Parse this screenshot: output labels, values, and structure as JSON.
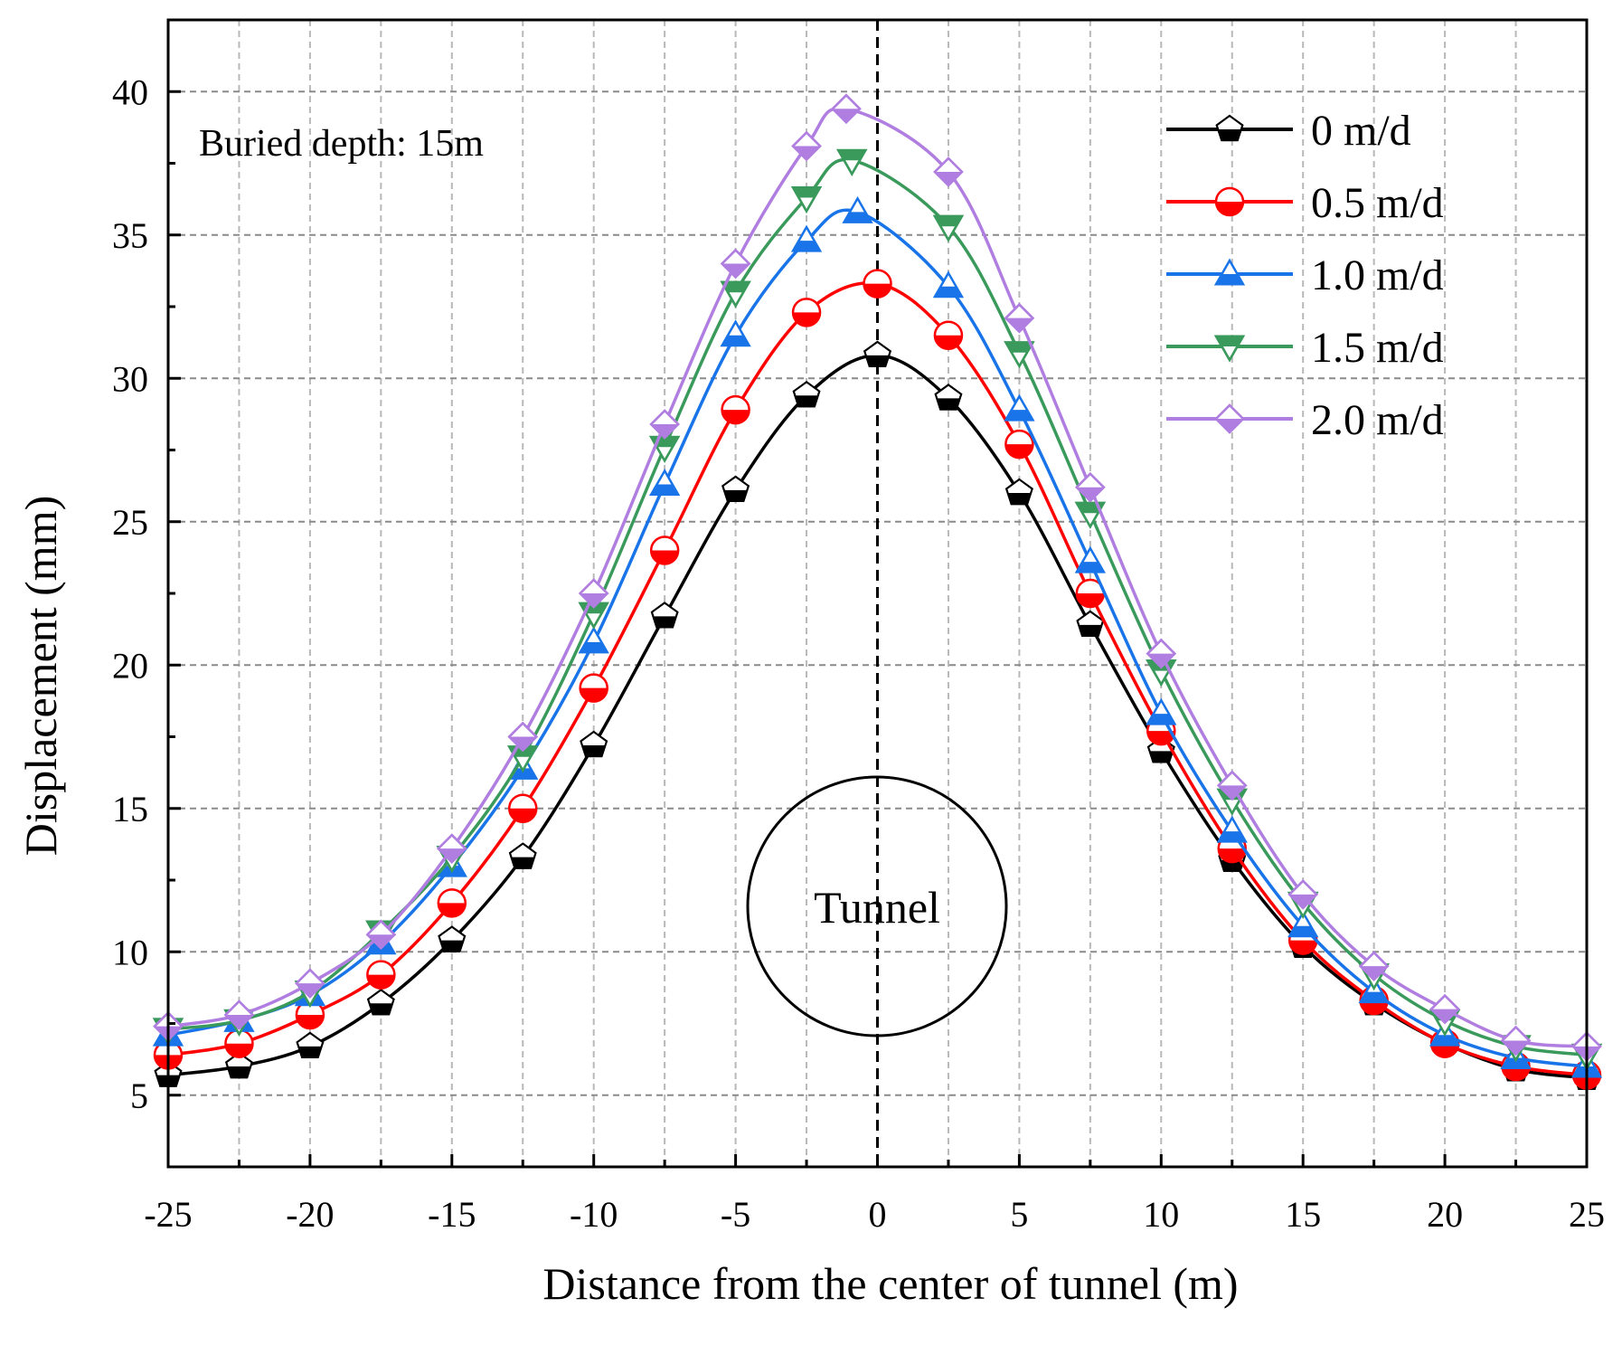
{
  "chart_data": {
    "type": "line",
    "xlabel": "Distance from the center of tunnel (m)",
    "ylabel": "Displacement (mm)",
    "xlim": [
      -25,
      25
    ],
    "ylim": [
      2.5,
      42.5
    ],
    "xticks": [
      -25,
      -20,
      -15,
      -10,
      -5,
      0,
      5,
      10,
      15,
      20,
      25
    ],
    "xtick_labels": [
      "-25",
      "-20",
      "-15",
      "-10",
      "-5",
      "0",
      "5",
      "10",
      "15",
      "20",
      "25"
    ],
    "yticks": [
      5,
      10,
      15,
      20,
      25,
      30,
      35,
      40
    ],
    "ytick_labels": [
      "5",
      "10",
      "15",
      "20",
      "25",
      "30",
      "35",
      "40"
    ],
    "grid": true,
    "legend_position": "top-right",
    "annotations": {
      "buried_depth": "Buried depth: 15m",
      "tunnel": "Tunnel"
    },
    "x": [
      -25,
      -22.5,
      -20,
      -17.5,
      -15,
      -12.5,
      -10,
      -7.5,
      -5,
      -2.5,
      0,
      2.5,
      5,
      7.5,
      10,
      12.5,
      15,
      17.5,
      20,
      22.5,
      25
    ],
    "series": [
      {
        "name": "0 m/d",
        "label": "0    m/d",
        "color": "#000000",
        "marker": "pentagon",
        "x": [
          -25,
          -22.5,
          -20,
          -17.5,
          -15,
          -12.5,
          -10,
          -7.5,
          -5,
          -2.5,
          0,
          2.5,
          5,
          7.5,
          10,
          12.5,
          15,
          17.5,
          20,
          22.5,
          25
        ],
        "values": [
          5.7,
          6.0,
          6.7,
          8.2,
          10.4,
          13.3,
          17.2,
          21.7,
          26.1,
          29.4,
          30.8,
          29.3,
          26.0,
          21.4,
          17.0,
          13.2,
          10.2,
          8.2,
          6.8,
          5.9,
          5.6
        ]
      },
      {
        "name": "0.5 m/d",
        "label": "0.5 m/d",
        "color": "#ff0000",
        "marker": "circle",
        "x": [
          -25,
          -22.5,
          -20,
          -17.5,
          -15,
          -12.5,
          -10,
          -7.5,
          -5,
          -2.5,
          0,
          2.5,
          5,
          7.5,
          10,
          12.5,
          15,
          17.5,
          20,
          22.5,
          25
        ],
        "values": [
          6.4,
          6.8,
          7.8,
          9.2,
          11.7,
          15.0,
          19.2,
          24.0,
          28.9,
          32.3,
          33.3,
          31.5,
          27.7,
          22.5,
          17.7,
          13.6,
          10.4,
          8.3,
          6.8,
          6.0,
          5.7
        ]
      },
      {
        "name": "1.0 m/d",
        "label": "1.0 m/d",
        "color": "#1874e8",
        "marker": "triangle-up",
        "x": [
          -25,
          -22.5,
          -20,
          -17.5,
          -15,
          -12.5,
          -10,
          -7.5,
          -5,
          -2.5,
          -0.7,
          2.5,
          5,
          7.5,
          10,
          12.5,
          15,
          17.5,
          20,
          22.5,
          25
        ],
        "values": [
          7.1,
          7.6,
          8.5,
          10.3,
          13.0,
          16.4,
          20.8,
          26.3,
          31.5,
          34.8,
          35.8,
          33.2,
          28.9,
          23.6,
          18.3,
          14.2,
          10.9,
          8.6,
          7.1,
          6.3,
          6.0
        ]
      },
      {
        "name": "1.5 m/d",
        "label": "1.5 m/d",
        "color": "#3a9a5c",
        "marker": "triangle-down",
        "x": [
          -25,
          -22.5,
          -20,
          -17.5,
          -15,
          -12.5,
          -10,
          -7.5,
          -5,
          -2.5,
          -0.9,
          2.5,
          5,
          7.5,
          10,
          12.5,
          15,
          17.5,
          20,
          22.5,
          25
        ],
        "values": [
          7.3,
          7.6,
          8.6,
          10.7,
          13.3,
          16.8,
          21.8,
          27.6,
          33.0,
          36.3,
          37.6,
          35.3,
          30.9,
          25.3,
          19.8,
          15.3,
          11.7,
          9.2,
          7.6,
          6.7,
          6.4
        ]
      },
      {
        "name": "2.0 m/d",
        "label": "2.0 m/d",
        "color": "#b07ee0",
        "marker": "diamond",
        "x": [
          -25,
          -22.5,
          -20,
          -17.5,
          -15,
          -12.5,
          -10,
          -7.5,
          -5,
          -2.5,
          -1.1,
          2.5,
          5,
          7.5,
          10,
          12.5,
          15,
          17.5,
          20,
          22.5,
          25
        ],
        "values": [
          7.4,
          7.8,
          8.9,
          10.6,
          13.6,
          17.5,
          22.5,
          28.4,
          34.0,
          38.1,
          39.4,
          37.2,
          32.1,
          26.2,
          20.4,
          15.8,
          12.0,
          9.5,
          8.0,
          6.9,
          6.7
        ]
      }
    ]
  }
}
